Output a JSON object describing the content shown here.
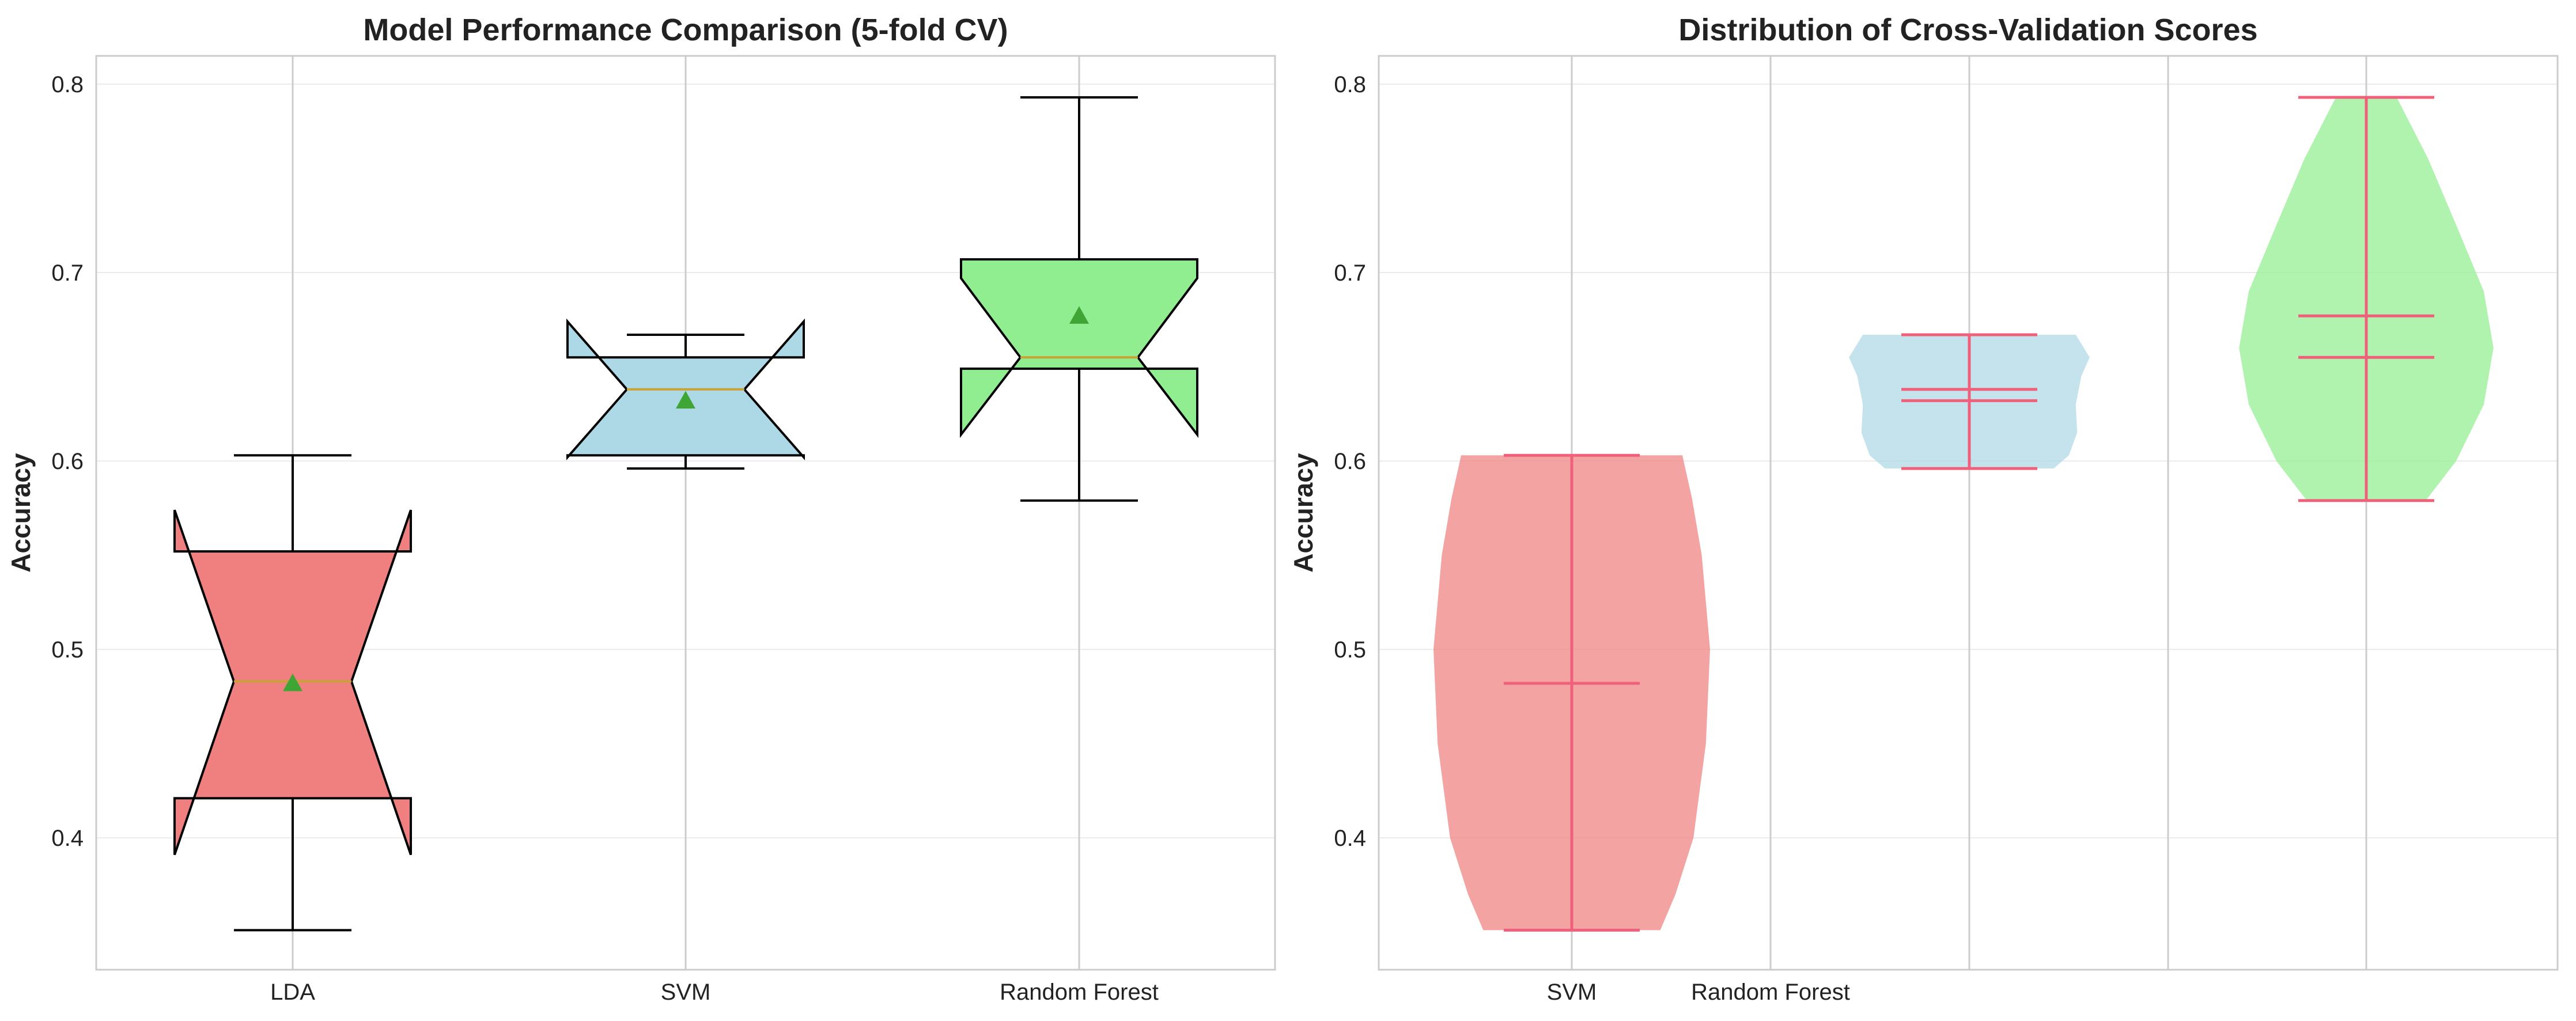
{
  "chart_data": [
    {
      "type": "box",
      "title": "Model Performance Comparison (5-fold CV)",
      "xlabel": "",
      "ylabel": "Accuracy",
      "ylim": [
        0.33,
        0.815
      ],
      "yticks": [
        "0.4",
        "0.5",
        "0.6",
        "0.7",
        "0.8"
      ],
      "grid": true,
      "categories": [
        "LDA",
        "SVM",
        "Random Forest"
      ],
      "colors": [
        "#f08080",
        "#add8e6",
        "#90ee90"
      ],
      "median_color": "#c8a232",
      "mean_marker_color": "#3fa535",
      "boxes": [
        {
          "min": 0.351,
          "q1": 0.421,
          "median": 0.483,
          "q3": 0.552,
          "max": 0.603,
          "mean": 0.482,
          "notch_low": 0.391,
          "notch_high": 0.574
        },
        {
          "min": 0.596,
          "q1": 0.603,
          "median": 0.638,
          "q3": 0.655,
          "max": 0.667,
          "mean": 0.632,
          "notch_low": 0.602,
          "notch_high": 0.674
        },
        {
          "min": 0.579,
          "q1": 0.649,
          "median": 0.655,
          "q3": 0.707,
          "max": 0.793,
          "mean": 0.677,
          "notch_low": 0.614,
          "notch_high": 0.697
        }
      ]
    },
    {
      "type": "violin",
      "title": "Distribution of Cross-Validation Scores",
      "xlabel": "",
      "ylabel": "Accuracy",
      "ylim": [
        0.33,
        0.815
      ],
      "yticks": [
        "0.4",
        "0.5",
        "0.6",
        "0.7",
        "0.8"
      ],
      "grid": true,
      "xtick_labels": [
        "SVM",
        "Random Forest"
      ],
      "colors": [
        "#f08080",
        "#add8e6",
        "#90ee90"
      ],
      "line_color": "#f0607a",
      "violins": [
        {
          "min": 0.351,
          "max": 0.603,
          "mean": 0.482,
          "median": 0.482,
          "profile": [
            [
              0.351,
              0.64
            ],
            [
              0.37,
              0.75
            ],
            [
              0.4,
              0.88
            ],
            [
              0.45,
              0.97
            ],
            [
              0.5,
              1.0
            ],
            [
              0.55,
              0.94
            ],
            [
              0.58,
              0.87
            ],
            [
              0.603,
              0.8
            ]
          ]
        },
        {
          "min": 0.596,
          "max": 0.667,
          "mean": 0.632,
          "median": 0.638,
          "profile": [
            [
              0.596,
              0.61
            ],
            [
              0.603,
              0.72
            ],
            [
              0.615,
              0.78
            ],
            [
              0.63,
              0.77
            ],
            [
              0.645,
              0.81
            ],
            [
              0.655,
              0.87
            ],
            [
              0.667,
              0.77
            ]
          ]
        },
        {
          "min": 0.579,
          "max": 0.793,
          "mean": 0.677,
          "median": 0.655,
          "profile": [
            [
              0.579,
              0.43
            ],
            [
              0.6,
              0.65
            ],
            [
              0.63,
              0.85
            ],
            [
              0.66,
              0.92
            ],
            [
              0.69,
              0.85
            ],
            [
              0.72,
              0.68
            ],
            [
              0.76,
              0.45
            ],
            [
              0.793,
              0.22
            ]
          ]
        }
      ]
    }
  ]
}
